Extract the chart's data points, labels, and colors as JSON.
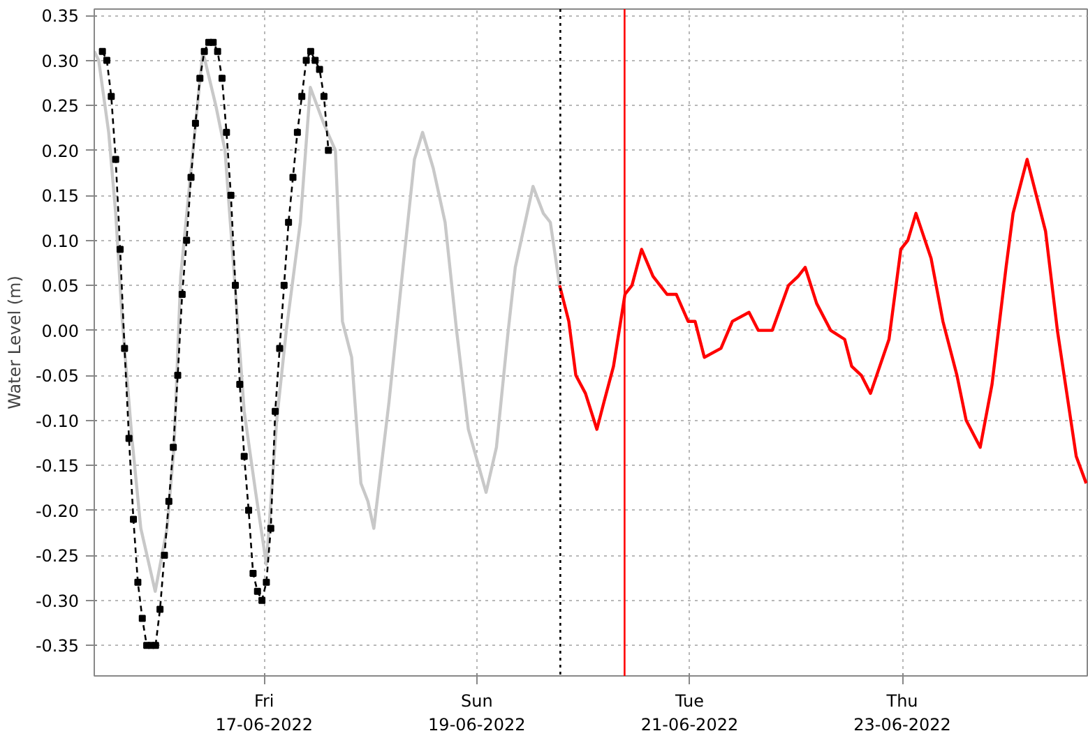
{
  "chart_data": {
    "type": "line",
    "ylabel": "Water Level (m)",
    "xlim": [
      "2022-06-15T09:40",
      "2022-06-24T17:45"
    ],
    "ylim": [
      -0.384,
      0.357
    ],
    "yticks": [
      {
        "value": -0.35,
        "label": "-0.35"
      },
      {
        "value": -0.3,
        "label": "-0.30"
      },
      {
        "value": -0.25,
        "label": "-0.25"
      },
      {
        "value": -0.2,
        "label": "-0.20"
      },
      {
        "value": -0.15,
        "label": "-0.15"
      },
      {
        "value": -0.1,
        "label": "-0.10"
      },
      {
        "value": -0.05,
        "label": "-0.05"
      },
      {
        "value": 0,
        "label": "0.00"
      },
      {
        "value": 0.05,
        "label": "0.05"
      },
      {
        "value": 0.1,
        "label": "0.10"
      },
      {
        "value": 0.15,
        "label": "0.15"
      },
      {
        "value": 0.2,
        "label": "0.20"
      },
      {
        "value": 0.25,
        "label": "0.25"
      },
      {
        "value": 0.3,
        "label": "0.30"
      },
      {
        "value": 0.35,
        "label": "0.35"
      }
    ],
    "xticks": [
      {
        "value": "2022-06-17",
        "label": "Fri\n17-06-2022"
      },
      {
        "value": "2022-06-19",
        "label": "Sun\n19-06-2022"
      },
      {
        "value": "2022-06-21",
        "label": "Tue\n21-06-2022"
      },
      {
        "value": "2022-06-23",
        "label": "Thu\n23-06-2022"
      }
    ],
    "grid": true,
    "marker": "none",
    "line_style": "solid",
    "ref_lines": [
      {
        "axis": "x",
        "value": "2022-06-19T18:50",
        "color": "#000000",
        "line_style": "dotted"
      },
      {
        "axis": "x",
        "value": "2022-06-20T09:20",
        "color": "#ff0000",
        "line_style": "solid"
      }
    ],
    "series": [
      {
        "color": "#c8c8c8",
        "x": [
          "2022-06-15T09:40",
          "2022-06-15T10:40",
          "2022-06-15T12:55",
          "2022-06-15T14:30",
          "2022-06-15T16:00",
          "2022-06-15T18:10",
          "2022-06-15T20:10",
          "2022-06-15T23:25",
          "2022-06-16T02:05",
          "2022-06-16T03:40",
          "2022-06-16T05:10",
          "2022-06-16T07:20",
          "2022-06-16T10:10",
          "2022-06-16T13:05",
          "2022-06-16T15:10",
          "2022-06-16T17:25",
          "2022-06-16T19:30",
          "2022-06-16T22:05",
          "2022-06-17T00:30",
          "2022-06-17T02:50",
          "2022-06-17T05:00",
          "2022-06-17T08:10",
          "2022-06-17T10:25",
          "2022-06-17T13:25",
          "2022-06-17T16:05",
          "2022-06-17T17:40",
          "2022-06-17T19:45",
          "2022-06-17T21:50",
          "2022-06-17T23:25",
          "2022-06-18T00:45",
          "2022-06-18T04:10",
          "2022-06-18T07:20",
          "2022-06-18T09:55",
          "2022-06-18T11:45",
          "2022-06-18T14:10",
          "2022-06-18T16:50",
          "2022-06-18T19:25",
          "2022-06-18T22:05",
          "2022-06-19T02:05",
          "2022-06-19T04:25",
          "2022-06-19T07:05",
          "2022-06-19T08:40",
          "2022-06-19T12:40",
          "2022-06-19T15:00",
          "2022-06-19T16:35",
          "2022-06-19T18:40"
        ],
        "values": [
          0.31,
          0.3,
          0.22,
          0.13,
          0.01,
          -0.12,
          -0.22,
          -0.29,
          -0.22,
          -0.13,
          0.06,
          0.17,
          0.31,
          0.25,
          0.2,
          0.05,
          -0.09,
          -0.18,
          -0.26,
          -0.1,
          0.0,
          0.12,
          0.27,
          0.23,
          0.2,
          0.01,
          -0.03,
          -0.17,
          -0.19,
          -0.22,
          -0.08,
          0.07,
          0.19,
          0.22,
          0.18,
          0.12,
          0.0,
          -0.11,
          -0.18,
          -0.13,
          0.0,
          0.07,
          0.16,
          0.13,
          0.12,
          0.05
        ]
      },
      {
        "color": "#ff0000",
        "x": [
          "2022-06-19T18:40",
          "2022-06-19T20:45",
          "2022-06-19T22:20",
          "2022-06-20T00:30",
          "2022-06-20T03:05",
          "2022-06-20T04:40",
          "2022-06-20T06:50",
          "2022-06-20T09:25",
          "2022-06-20T11:00",
          "2022-06-20T13:10",
          "2022-06-20T15:45",
          "2022-06-20T18:55",
          "2022-06-20T21:00",
          "2022-06-20T23:40",
          "2022-06-21T01:15",
          "2022-06-21T03:20",
          "2022-06-21T07:05",
          "2022-06-21T09:40",
          "2022-06-21T13:25",
          "2022-06-21T15:30",
          "2022-06-21T18:40",
          "2022-06-21T22:20",
          "2022-06-22T00:30",
          "2022-06-22T02:05",
          "2022-06-22T04:40",
          "2022-06-22T07:50",
          "2022-06-22T11:00",
          "2022-06-22T12:35",
          "2022-06-22T14:45",
          "2022-06-22T16:50",
          "2022-06-22T21:00",
          "2022-06-22T23:40",
          "2022-06-23T01:15",
          "2022-06-23T03:05",
          "2022-06-23T06:30",
          "2022-06-23T09:10",
          "2022-06-23T12:20",
          "2022-06-23T14:25",
          "2022-06-23T17:35",
          "2022-06-23T20:15",
          "2022-06-23T23:25",
          "2022-06-24T01:00",
          "2022-06-24T04:10",
          "2022-06-24T08:20",
          "2022-06-24T11:00",
          "2022-06-24T15:15",
          "2022-06-24T17:30"
        ],
        "values": [
          0.05,
          0.01,
          -0.05,
          -0.07,
          -0.11,
          -0.08,
          -0.04,
          0.04,
          0.05,
          0.09,
          0.06,
          0.04,
          0.04,
          0.01,
          0.01,
          -0.03,
          -0.02,
          0.01,
          0.02,
          0.0,
          0.0,
          0.05,
          0.06,
          0.07,
          0.03,
          0.0,
          -0.01,
          -0.04,
          -0.05,
          -0.07,
          -0.01,
          0.09,
          0.1,
          0.13,
          0.08,
          0.01,
          -0.05,
          -0.1,
          -0.13,
          -0.06,
          0.07,
          0.13,
          0.19,
          0.11,
          0.0,
          -0.14,
          -0.17
        ]
      },
      {
        "color": "#000000",
        "marker": "square",
        "line_style": "dashed",
        "x": [
          "2022-06-15T11:30",
          "2022-06-15T12:30",
          "2022-06-15T13:30",
          "2022-06-15T14:30",
          "2022-06-15T15:30",
          "2022-06-15T16:30",
          "2022-06-15T17:30",
          "2022-06-15T18:30",
          "2022-06-15T19:30",
          "2022-06-15T20:30",
          "2022-06-15T21:30",
          "2022-06-15T22:30",
          "2022-06-15T23:30",
          "2022-06-16T00:30",
          "2022-06-16T01:30",
          "2022-06-16T02:30",
          "2022-06-16T03:30",
          "2022-06-16T04:30",
          "2022-06-16T05:30",
          "2022-06-16T06:30",
          "2022-06-16T07:30",
          "2022-06-16T08:30",
          "2022-06-16T09:30",
          "2022-06-16T10:30",
          "2022-06-16T11:30",
          "2022-06-16T12:30",
          "2022-06-16T13:30",
          "2022-06-16T14:30",
          "2022-06-16T15:30",
          "2022-06-16T16:30",
          "2022-06-16T17:30",
          "2022-06-16T18:30",
          "2022-06-16T19:30",
          "2022-06-16T20:30",
          "2022-06-16T21:30",
          "2022-06-16T22:30",
          "2022-06-16T23:30",
          "2022-06-17T00:30",
          "2022-06-17T01:30",
          "2022-06-17T02:30",
          "2022-06-17T03:30",
          "2022-06-17T04:30",
          "2022-06-17T05:30",
          "2022-06-17T06:30",
          "2022-06-17T07:30",
          "2022-06-17T08:30",
          "2022-06-17T09:30",
          "2022-06-17T10:30",
          "2022-06-17T11:30",
          "2022-06-17T12:30",
          "2022-06-17T13:30",
          "2022-06-17T14:30"
        ],
        "values": [
          0.31,
          0.3,
          0.26,
          0.19,
          0.09,
          -0.02,
          -0.12,
          -0.21,
          -0.28,
          -0.32,
          -0.35,
          -0.35,
          -0.35,
          -0.31,
          -0.25,
          -0.19,
          -0.13,
          -0.05,
          0.04,
          0.1,
          0.17,
          0.23,
          0.28,
          0.31,
          0.32,
          0.32,
          0.31,
          0.28,
          0.22,
          0.15,
          0.05,
          -0.06,
          -0.14,
          -0.2,
          -0.27,
          -0.29,
          -0.3,
          -0.28,
          -0.22,
          -0.09,
          -0.02,
          0.05,
          0.12,
          0.17,
          0.22,
          0.26,
          0.3,
          0.31,
          0.3,
          0.29,
          0.26,
          0.2
        ]
      }
    ]
  }
}
